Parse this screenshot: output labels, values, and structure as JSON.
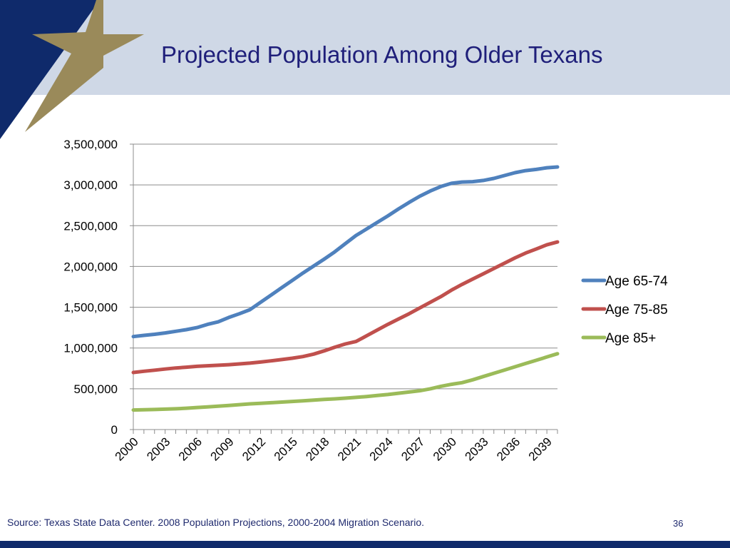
{
  "slide": {
    "title": "Projected Population Among Older Texans",
    "source": "Source: Texas State Data Center. 2008 Population Projections, 2000-2004 Migration Scenario.",
    "page_number": "36"
  },
  "colors": {
    "header_band": "#cfd8e6",
    "corner_blue": "#0f2a6b",
    "star_gold": "#9a8a5a",
    "title_text": "#1f1f7a",
    "series": [
      "#4f81bd",
      "#c0504d",
      "#9bbb59"
    ]
  },
  "chart_data": {
    "type": "line",
    "title": "",
    "xlabel": "",
    "ylabel": "",
    "ylim": [
      0,
      3500000
    ],
    "ytick_step": 500000,
    "ytick_labels": [
      "0",
      "500,000",
      "1,000,000",
      "1,500,000",
      "2,000,000",
      "2,500,000",
      "3,000,000",
      "3,500,000"
    ],
    "x": [
      2000,
      2001,
      2002,
      2003,
      2004,
      2005,
      2006,
      2007,
      2008,
      2009,
      2010,
      2011,
      2012,
      2013,
      2014,
      2015,
      2016,
      2017,
      2018,
      2019,
      2020,
      2021,
      2022,
      2023,
      2024,
      2025,
      2026,
      2027,
      2028,
      2029,
      2030,
      2031,
      2032,
      2033,
      2034,
      2035,
      2036,
      2037,
      2038,
      2039,
      2040
    ],
    "xtick_labels": [
      "2000",
      "2003",
      "2006",
      "2009",
      "2012",
      "2015",
      "2018",
      "2021",
      "2024",
      "2027",
      "2030",
      "2033",
      "2036",
      "2039"
    ],
    "xtick_label_years": [
      2000,
      2003,
      2006,
      2009,
      2012,
      2015,
      2018,
      2021,
      2024,
      2027,
      2030,
      2033,
      2036,
      2039
    ],
    "grid": true,
    "legend_position": "right",
    "series": [
      {
        "name": "Age 65-74",
        "values": [
          1140000,
          1155000,
          1168000,
          1185000,
          1205000,
          1225000,
          1250000,
          1290000,
          1320000,
          1375000,
          1420000,
          1470000,
          1560000,
          1650000,
          1740000,
          1830000,
          1920000,
          2005000,
          2090000,
          2180000,
          2280000,
          2380000,
          2460000,
          2540000,
          2620000,
          2705000,
          2785000,
          2860000,
          2925000,
          2980000,
          3020000,
          3035000,
          3040000,
          3055000,
          3080000,
          3115000,
          3150000,
          3175000,
          3190000,
          3210000,
          3220000
        ]
      },
      {
        "name": "Age 75-85",
        "values": [
          700000,
          715000,
          728000,
          742000,
          755000,
          765000,
          775000,
          782000,
          788000,
          795000,
          805000,
          815000,
          828000,
          843000,
          858000,
          875000,
          895000,
          925000,
          965000,
          1010000,
          1050000,
          1080000,
          1150000,
          1220000,
          1290000,
          1355000,
          1420000,
          1490000,
          1560000,
          1630000,
          1710000,
          1780000,
          1845000,
          1910000,
          1975000,
          2040000,
          2105000,
          2165000,
          2215000,
          2265000,
          2300000
        ]
      },
      {
        "name": "Age 85+",
        "values": [
          240000,
          242000,
          246000,
          250000,
          255000,
          262000,
          270000,
          278000,
          287000,
          296000,
          305000,
          315000,
          322000,
          329000,
          337000,
          345000,
          353000,
          361000,
          369000,
          376000,
          385000,
          395000,
          405000,
          417000,
          430000,
          445000,
          460000,
          475000,
          500000,
          530000,
          555000,
          575000,
          610000,
          650000,
          690000,
          730000,
          770000,
          810000,
          850000,
          890000,
          930000
        ]
      }
    ]
  }
}
